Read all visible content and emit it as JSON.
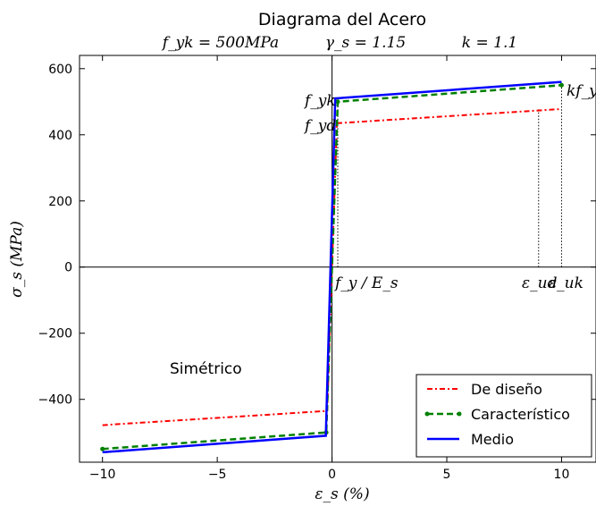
{
  "chart_data": {
    "type": "line",
    "title": "Diagrama del Acero",
    "subtitle": {
      "fyk": "f_yk = 500MPa",
      "gamma": "γ_s = 1.15",
      "k": "k = 1.1"
    },
    "xlabel": "ε_s (%)",
    "ylabel": "σ_s (MPa)",
    "xlim": [
      -11,
      11.5
    ],
    "ylim": [
      -590,
      640
    ],
    "xticks": [
      -10,
      -5,
      0,
      5,
      10
    ],
    "xtick_labels": [
      "−10",
      "−5",
      "0",
      "5",
      "10"
    ],
    "yticks": [
      600,
      400,
      200,
      0,
      -200,
      -400
    ],
    "ytick_labels": [
      "600",
      "400",
      "200",
      "0",
      "−200",
      "−400"
    ],
    "grid": false,
    "legend_position": "bottom-right",
    "series": [
      {
        "name": "De diseño",
        "color": "#ff0000",
        "style": "dash-dot",
        "x": [
          -10,
          -0.21,
          0.21,
          10
        ],
        "y": [
          -478,
          -435,
          435,
          478
        ]
      },
      {
        "name": "Característico",
        "color": "#008000",
        "style": "dashed",
        "x": [
          -10,
          -0.25,
          0.25,
          10
        ],
        "y": [
          -550,
          -500,
          500,
          550
        ]
      },
      {
        "name": "Medio",
        "color": "#0000ff",
        "style": "solid",
        "x": [
          -10,
          -0.27,
          0.14,
          10
        ],
        "y": [
          -560,
          -510,
          510,
          560
        ]
      }
    ],
    "annotations": {
      "fyk": "f_yk",
      "fyd": "f_yd",
      "kfyk": "kf_yk",
      "fyEs": "f_y / E_s",
      "eud": "ε_ud",
      "euk": "ε_uk",
      "simetrico": "Simétrico"
    },
    "reference_lines": [
      {
        "x": 9.0,
        "y_from": 0,
        "y_to": 478,
        "style": "dotted"
      },
      {
        "x": 10.0,
        "y_from": 0,
        "y_to": 550,
        "style": "dotted"
      },
      {
        "x": 0.25,
        "y_from": 0,
        "y_to": 500,
        "style": "dotted"
      }
    ]
  }
}
